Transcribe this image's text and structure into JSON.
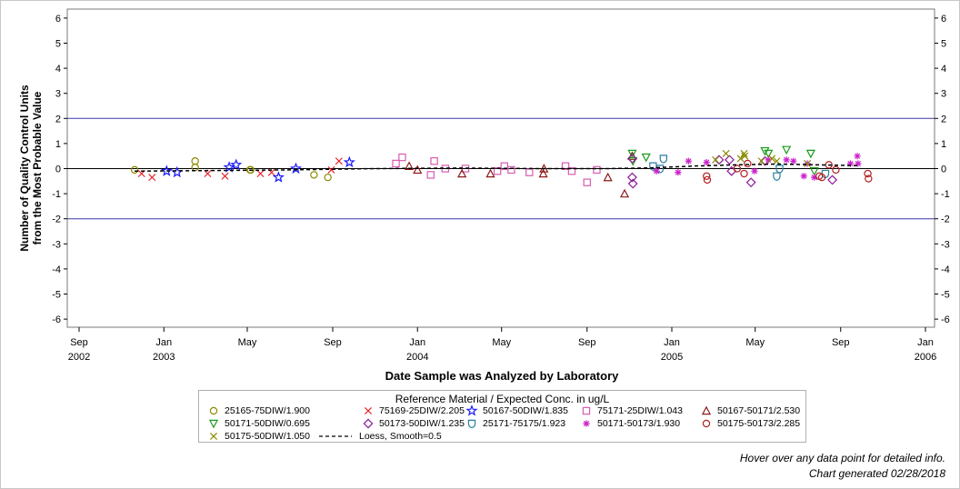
{
  "chart_data": {
    "type": "scatter",
    "title": "",
    "xlabel": "Date Sample was Analyzed by Laboratory",
    "ylabel_lines": [
      "Number of Quality Control Units",
      "from the Most Probable Value"
    ],
    "ylim": [
      -6.3,
      6.3
    ],
    "xlim": [
      "2002-09-01",
      "2006-01-01"
    ],
    "y_ticks": [
      -6,
      -5,
      -4,
      -3,
      -2,
      -1,
      0,
      1,
      2,
      3,
      4,
      5,
      6
    ],
    "x_ticks": [
      {
        "date": "2002-09-01",
        "label": "Sep",
        "year": "2002"
      },
      {
        "date": "2003-01-01",
        "label": "Jan",
        "year": "2003"
      },
      {
        "date": "2003-05-01",
        "label": "May",
        "year": ""
      },
      {
        "date": "2003-09-01",
        "label": "Sep",
        "year": ""
      },
      {
        "date": "2004-01-01",
        "label": "Jan",
        "year": "2004"
      },
      {
        "date": "2004-05-01",
        "label": "May",
        "year": ""
      },
      {
        "date": "2004-09-01",
        "label": "Sep",
        "year": ""
      },
      {
        "date": "2005-01-01",
        "label": "Jan",
        "year": "2005"
      },
      {
        "date": "2005-05-01",
        "label": "May",
        "year": ""
      },
      {
        "date": "2005-09-01",
        "label": "Sep",
        "year": ""
      },
      {
        "date": "2006-01-01",
        "label": "Jan",
        "year": "2006"
      }
    ],
    "reference_lines": [
      2,
      0,
      -2
    ],
    "grid": false,
    "legend_position": "bottom",
    "legend_title": "Reference Material / Expected Conc. in ug/L",
    "series": [
      {
        "name": "25165-75DIW/1.900",
        "marker": "circle",
        "color": "#8a8a00",
        "points": [
          [
            "2002-11-20",
            -0.05
          ],
          [
            "2003-02-15",
            0.3
          ],
          [
            "2003-02-15",
            0.05
          ],
          [
            "2003-05-05",
            -0.05
          ],
          [
            "2003-05-06",
            -0.05
          ],
          [
            "2003-08-05",
            -0.25
          ],
          [
            "2003-08-25",
            -0.35
          ]
        ]
      },
      {
        "name": "75169-25DIW/2.205",
        "marker": "x",
        "color": "#e8232b",
        "points": [
          [
            "2002-11-30",
            -0.2
          ],
          [
            "2002-12-15",
            -0.35
          ],
          [
            "2003-03-05",
            -0.2
          ],
          [
            "2003-03-30",
            -0.3
          ],
          [
            "2003-05-20",
            -0.2
          ],
          [
            "2003-06-05",
            -0.15
          ],
          [
            "2003-08-30",
            -0.05
          ],
          [
            "2003-09-10",
            0.3
          ]
        ]
      },
      {
        "name": "50167-50DIW/1.835",
        "marker": "star",
        "color": "#1a1aff",
        "points": [
          [
            "2003-01-05",
            -0.1
          ],
          [
            "2003-01-20",
            -0.15
          ],
          [
            "2003-04-05",
            0.05
          ],
          [
            "2003-04-15",
            0.15
          ],
          [
            "2003-06-15",
            -0.35
          ],
          [
            "2003-07-10",
            0.0
          ],
          [
            "2003-09-25",
            0.25
          ]
        ]
      },
      {
        "name": "75171-25DIW/1.043",
        "marker": "square",
        "color": "#d75db0",
        "points": [
          [
            "2003-12-01",
            0.2
          ],
          [
            "2003-12-10",
            0.45
          ],
          [
            "2004-01-20",
            -0.25
          ],
          [
            "2004-01-25",
            0.3
          ],
          [
            "2004-02-10",
            0.0
          ],
          [
            "2004-03-10",
            0.0
          ],
          [
            "2004-04-25",
            -0.1
          ],
          [
            "2004-05-05",
            0.1
          ],
          [
            "2004-05-15",
            -0.05
          ],
          [
            "2004-06-10",
            -0.15
          ],
          [
            "2004-08-01",
            0.1
          ],
          [
            "2004-08-10",
            -0.1
          ],
          [
            "2004-09-01",
            -0.55
          ],
          [
            "2004-09-15",
            -0.05
          ]
        ]
      },
      {
        "name": "50167-50171/2.530",
        "marker": "triangle",
        "color": "#8b1a1a",
        "points": [
          [
            "2003-12-20",
            0.1
          ],
          [
            "2004-01-01",
            -0.05
          ],
          [
            "2004-03-05",
            -0.2
          ],
          [
            "2004-04-15",
            -0.2
          ],
          [
            "2004-06-30",
            -0.2
          ],
          [
            "2004-07-01",
            0.0
          ],
          [
            "2004-10-01",
            -0.35
          ],
          [
            "2004-10-25",
            -1.0
          ],
          [
            "2004-11-05",
            0.5
          ]
        ]
      },
      {
        "name": "50171-50DIW/0.695",
        "marker": "triangle-down",
        "color": "#1a9a1a",
        "points": [
          [
            "2004-11-05",
            0.6
          ],
          [
            "2004-11-06",
            0.3
          ],
          [
            "2004-11-25",
            0.45
          ],
          [
            "2005-05-15",
            0.7
          ],
          [
            "2005-05-20",
            0.6
          ],
          [
            "2005-06-15",
            0.75
          ],
          [
            "2005-07-20",
            0.6
          ],
          [
            "2005-07-25",
            -0.1
          ]
        ]
      },
      {
        "name": "50173-50DIW/1.235",
        "marker": "diamond",
        "color": "#8b1a9a",
        "points": [
          [
            "2004-11-05",
            0.4
          ],
          [
            "2004-11-05",
            -0.35
          ],
          [
            "2004-11-06",
            -0.6
          ],
          [
            "2005-03-10",
            0.35
          ],
          [
            "2005-03-25",
            0.35
          ],
          [
            "2005-03-28",
            -0.1
          ],
          [
            "2005-04-25",
            -0.55
          ],
          [
            "2005-05-15",
            0.3
          ],
          [
            "2005-08-20",
            -0.45
          ]
        ]
      },
      {
        "name": "25171-75175/1.923",
        "marker": "shield",
        "color": "#2a7fa0",
        "points": [
          [
            "2004-12-05",
            0.1
          ],
          [
            "2004-12-15",
            0.0
          ],
          [
            "2004-12-20",
            0.4
          ],
          [
            "2005-06-01",
            -0.3
          ],
          [
            "2005-06-05",
            0.0
          ],
          [
            "2005-08-10",
            -0.2
          ]
        ]
      },
      {
        "name": "50171-50173/1.930",
        "marker": "asterisk",
        "color": "#cc22cc",
        "points": [
          [
            "2004-12-10",
            -0.1
          ],
          [
            "2005-01-10",
            -0.15
          ],
          [
            "2005-01-25",
            0.3
          ],
          [
            "2005-02-20",
            0.25
          ],
          [
            "2005-04-30",
            -0.1
          ],
          [
            "2005-05-20",
            0.35
          ],
          [
            "2005-06-15",
            0.35
          ],
          [
            "2005-06-25",
            0.3
          ],
          [
            "2005-07-10",
            -0.3
          ],
          [
            "2005-07-15",
            0.2
          ],
          [
            "2005-07-25",
            -0.35
          ],
          [
            "2005-09-15",
            0.2
          ],
          [
            "2005-09-25",
            0.5
          ],
          [
            "2005-09-26",
            0.2
          ]
        ]
      },
      {
        "name": "50175-50DIW/1.050",
        "marker": "x",
        "color": "#8a8a00",
        "points": [
          [
            "2005-03-05",
            0.35
          ],
          [
            "2005-03-20",
            0.6
          ],
          [
            "2005-04-10",
            0.4
          ],
          [
            "2005-04-15",
            0.6
          ],
          [
            "2005-04-16",
            0.5
          ],
          [
            "2005-05-10",
            0.3
          ],
          [
            "2005-05-25",
            0.4
          ],
          [
            "2005-06-01",
            0.3
          ],
          [
            "2005-07-15",
            0.2
          ]
        ]
      },
      {
        "name": "50175-50173/2.285",
        "marker": "circle",
        "color": "#b22222",
        "points": [
          [
            "2005-02-20",
            -0.3
          ],
          [
            "2005-02-21",
            -0.45
          ],
          [
            "2005-04-05",
            0.0
          ],
          [
            "2005-04-15",
            -0.2
          ],
          [
            "2005-04-20",
            0.2
          ],
          [
            "2005-08-01",
            -0.3
          ],
          [
            "2005-08-05",
            -0.35
          ],
          [
            "2005-08-15",
            0.15
          ],
          [
            "2005-08-25",
            -0.05
          ],
          [
            "2005-10-10",
            -0.2
          ],
          [
            "2005-10-11",
            -0.4
          ]
        ]
      }
    ],
    "loess": {
      "name": "Loess, Smooth=0.5",
      "color": "#000000",
      "points": [
        [
          "2002-11-20",
          -0.1
        ],
        [
          "2003-03-01",
          -0.08
        ],
        [
          "2003-07-01",
          -0.05
        ],
        [
          "2003-11-01",
          0.0
        ],
        [
          "2004-03-01",
          0.02
        ],
        [
          "2004-07-01",
          0.0
        ],
        [
          "2004-10-01",
          0.0
        ],
        [
          "2004-12-01",
          0.03
        ],
        [
          "2005-02-01",
          0.1
        ],
        [
          "2005-04-01",
          0.15
        ],
        [
          "2005-06-01",
          0.18
        ],
        [
          "2005-08-01",
          0.15
        ],
        [
          "2005-09-25",
          0.12
        ]
      ]
    }
  },
  "notes": {
    "hover": "Hover over any data point for detailed info.",
    "generated": "Chart generated 02/28/2018"
  }
}
